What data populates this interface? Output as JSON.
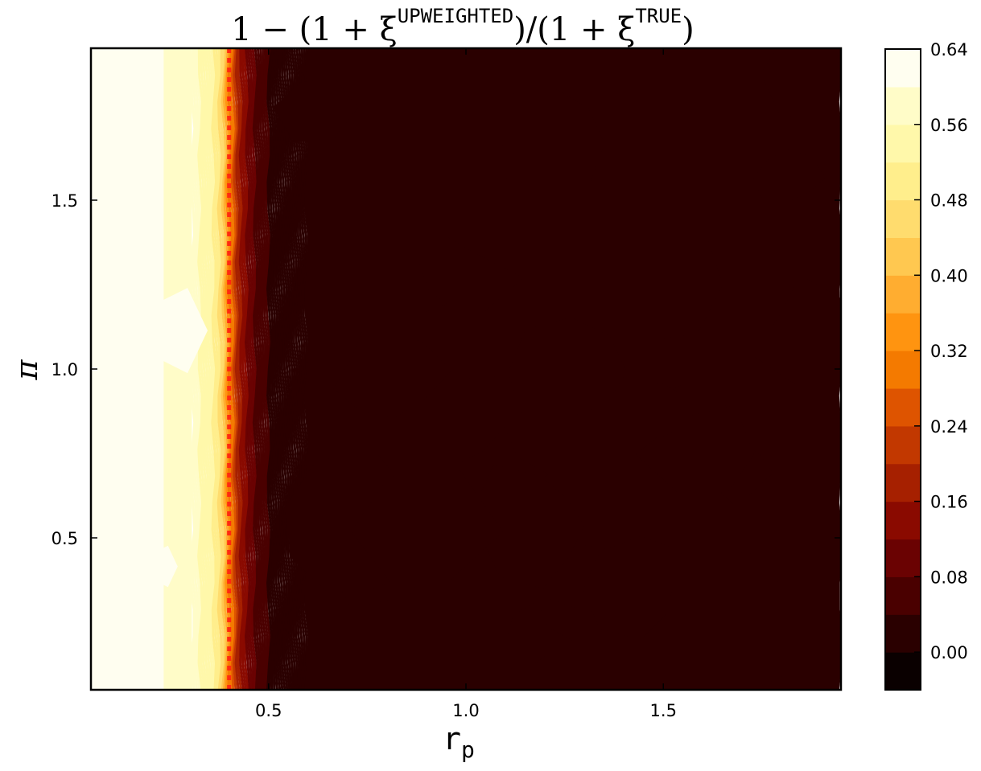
{
  "chart_data": {
    "type": "heatmap",
    "title": {
      "prefix": "1 − (1 + ξ",
      "sup1": "UPWEIGHTED",
      "middle": ")/(1 + ξ",
      "sup2": "TRUE",
      "suffix": ")"
    },
    "xlabel": {
      "base": "r",
      "sub": "p"
    },
    "ylabel": "π",
    "xlim": [
      0.05,
      1.95
    ],
    "ylim": [
      0.05,
      1.95
    ],
    "xticks": [
      0.5,
      1.0,
      1.5
    ],
    "xtick_labels": [
      "0.5",
      "1.0",
      "1.5"
    ],
    "yticks": [
      0.5,
      1.0,
      1.5
    ],
    "ytick_labels": [
      "0.5",
      "1.0",
      "1.5"
    ],
    "reference_line": {
      "x": 0.4,
      "orientation": "vertical",
      "style": "dotted",
      "color": "#ff2a10"
    },
    "colorbar": {
      "min": -0.04,
      "max": 0.64,
      "step": 0.04,
      "tick_values": [
        0.0,
        0.08,
        0.16,
        0.24,
        0.32,
        0.4,
        0.48,
        0.56,
        0.64
      ],
      "tick_labels": [
        "0.00",
        "0.08",
        "0.16",
        "0.24",
        "0.32",
        "0.40",
        "0.48",
        "0.56",
        "0.64"
      ],
      "colors": [
        "#0a0000",
        "#2a0000",
        "#4a0000",
        "#6a0202",
        "#8a0a00",
        "#a62000",
        "#c23800",
        "#de5400",
        "#f47a00",
        "#ff9410",
        "#ffad30",
        "#ffc850",
        "#ffdc6e",
        "#ffee8c",
        "#fff8aa",
        "#fffcc8",
        "#fffef0"
      ]
    },
    "profile_x": [
      0.05,
      0.2,
      0.3,
      0.35,
      0.38,
      0.4,
      0.42,
      0.45,
      0.48,
      0.52,
      0.6,
      0.8,
      1.0,
      1.5,
      1.95
    ],
    "profile_z": [
      0.63,
      0.61,
      0.58,
      0.54,
      0.46,
      0.33,
      0.2,
      0.1,
      0.06,
      0.02,
      0.01,
      0.005,
      0.0,
      0.0,
      0.0
    ]
  }
}
